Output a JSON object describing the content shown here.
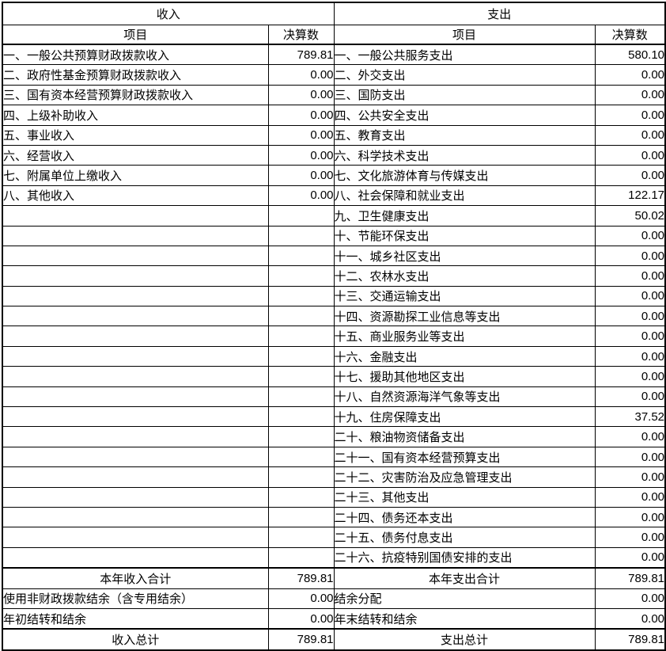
{
  "page": {
    "background_color": "#ffffff",
    "border_color": "#000000",
    "text_color": "#000000"
  },
  "income": {
    "title": "收入",
    "header": {
      "item": "项目",
      "value": "决算数"
    },
    "items": [
      {
        "item": "一、一般公共预算财政拨款收入",
        "value": "789.81"
      },
      {
        "item": "二、政府性基金预算财政拨款收入",
        "value": "0.00"
      },
      {
        "item": "三、国有资本经营预算财政拨款收入",
        "value": "0.00"
      },
      {
        "item": "四、上级补助收入",
        "value": "0.00"
      },
      {
        "item": "五、事业收入",
        "value": "0.00"
      },
      {
        "item": "六、经营收入",
        "value": "0.00"
      },
      {
        "item": "七、附属单位上缴收入",
        "value": "0.00"
      },
      {
        "item": "八、其他收入",
        "value": "0.00"
      }
    ],
    "summary": [
      {
        "item": "本年收入合计",
        "value": "789.81",
        "emphasis": true
      },
      {
        "item": "使用非财政拨款结余（含专用结余）",
        "value": "0.00",
        "emphasis": false
      },
      {
        "item": "年初结转和结余",
        "value": "0.00",
        "emphasis": false
      },
      {
        "item": "收入总计",
        "value": "789.81",
        "emphasis": true
      }
    ]
  },
  "expenditure": {
    "title": "支出",
    "header": {
      "item": "项目",
      "value": "决算数"
    },
    "items": [
      {
        "item": "一、一般公共服务支出",
        "value": "580.10"
      },
      {
        "item": "二、外交支出",
        "value": "0.00"
      },
      {
        "item": "三、国防支出",
        "value": "0.00"
      },
      {
        "item": "四、公共安全支出",
        "value": "0.00"
      },
      {
        "item": "五、教育支出",
        "value": "0.00"
      },
      {
        "item": "六、科学技术支出",
        "value": "0.00"
      },
      {
        "item": "七、文化旅游体育与传媒支出",
        "value": "0.00"
      },
      {
        "item": "八、社会保障和就业支出",
        "value": "122.17"
      },
      {
        "item": "九、卫生健康支出",
        "value": "50.02"
      },
      {
        "item": "十、节能环保支出",
        "value": "0.00"
      },
      {
        "item": "十一、城乡社区支出",
        "value": "0.00"
      },
      {
        "item": "十二、农林水支出",
        "value": "0.00"
      },
      {
        "item": "十三、交通运输支出",
        "value": "0.00"
      },
      {
        "item": "十四、资源勘探工业信息等支出",
        "value": "0.00"
      },
      {
        "item": "十五、商业服务业等支出",
        "value": "0.00"
      },
      {
        "item": "十六、金融支出",
        "value": "0.00"
      },
      {
        "item": "十七、援助其他地区支出",
        "value": "0.00"
      },
      {
        "item": "十八、自然资源海洋气象等支出",
        "value": "0.00"
      },
      {
        "item": "十九、住房保障支出",
        "value": "37.52"
      },
      {
        "item": "二十、粮油物资储备支出",
        "value": "0.00"
      },
      {
        "item": "二十一、国有资本经营预算支出",
        "value": "0.00"
      },
      {
        "item": "二十二、灾害防治及应急管理支出",
        "value": "0.00"
      },
      {
        "item": "二十三、其他支出",
        "value": "0.00"
      },
      {
        "item": "二十四、债务还本支出",
        "value": "0.00"
      },
      {
        "item": "二十五、债务付息支出",
        "value": "0.00"
      },
      {
        "item": "二十六、抗疫特别国债安排的支出",
        "value": "0.00"
      }
    ],
    "summary": [
      {
        "item": "本年支出合计",
        "value": "789.81",
        "emphasis": true
      },
      {
        "item": "结余分配",
        "value": "0.00",
        "emphasis": false
      },
      {
        "item": "年末结转和结余",
        "value": "0.00",
        "emphasis": false
      },
      {
        "item": "支出总计",
        "value": "789.81",
        "emphasis": true
      }
    ]
  }
}
